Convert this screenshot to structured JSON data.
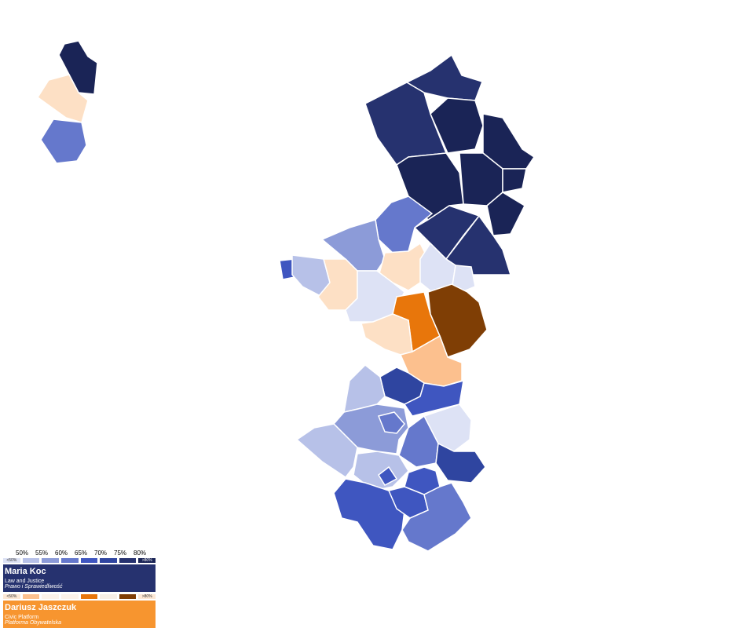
{
  "legend": {
    "ticks": [
      "50%",
      "55%",
      "60%",
      "65%",
      "70%",
      "75%",
      "80%"
    ],
    "low_label": "<50%",
    "high_label": ">80%",
    "candidates": [
      {
        "name": "Maria Koc",
        "party": "Law and Justice",
        "party_pl": "Prawo i Sprawiedliwość",
        "color": "#26326f",
        "scale": [
          "#dde2f5",
          "#b7c1e8",
          "#8c9bd8",
          "#6578cc",
          "#3f56c0",
          "#2f45a0",
          "#26326f",
          "#1a2456"
        ]
      },
      {
        "name": "Dariusz Jaszczuk",
        "party": "Civic Platform",
        "party_pl": "Platforma Obywatelska",
        "color": "#f7952f",
        "scale": [
          "#fde8d5",
          "#fcc08e",
          "#fdf3ea",
          "#fdf3ea",
          "#e8760b",
          "#f7efe6",
          "#7f3e05",
          "#fde8d5"
        ]
      }
    ]
  }
}
